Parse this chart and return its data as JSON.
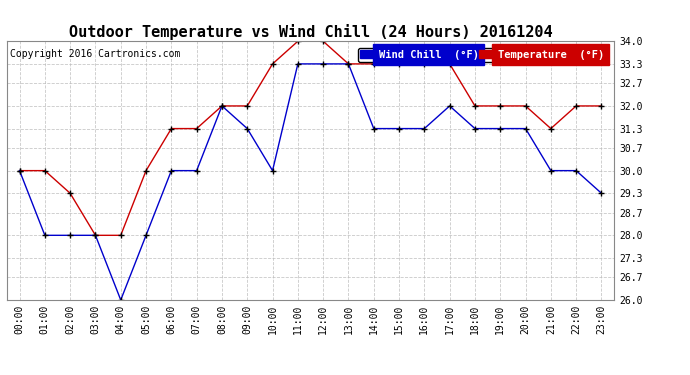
{
  "title": "Outdoor Temperature vs Wind Chill (24 Hours) 20161204",
  "copyright": "Copyright 2016 Cartronics.com",
  "x_labels": [
    "00:00",
    "01:00",
    "02:00",
    "03:00",
    "04:00",
    "05:00",
    "06:00",
    "07:00",
    "08:00",
    "09:00",
    "10:00",
    "11:00",
    "12:00",
    "13:00",
    "14:00",
    "15:00",
    "16:00",
    "17:00",
    "18:00",
    "19:00",
    "20:00",
    "21:00",
    "22:00",
    "23:00"
  ],
  "temperature": [
    30.0,
    30.0,
    29.3,
    28.0,
    28.0,
    30.0,
    31.3,
    31.3,
    32.0,
    32.0,
    33.3,
    34.0,
    34.0,
    33.3,
    33.3,
    33.3,
    33.3,
    33.3,
    32.0,
    32.0,
    32.0,
    31.3,
    32.0,
    32.0
  ],
  "wind_chill": [
    30.0,
    28.0,
    28.0,
    28.0,
    26.0,
    28.0,
    30.0,
    30.0,
    32.0,
    31.3,
    30.0,
    33.3,
    33.3,
    33.3,
    31.3,
    31.3,
    31.3,
    32.0,
    31.3,
    31.3,
    31.3,
    30.0,
    30.0,
    29.3
  ],
  "ylim": [
    26.0,
    34.0
  ],
  "yticks": [
    26.0,
    26.7,
    27.3,
    28.0,
    28.7,
    29.3,
    30.0,
    30.7,
    31.3,
    32.0,
    32.7,
    33.3,
    34.0
  ],
  "temp_color": "#cc0000",
  "wind_chill_color": "#0000cc",
  "bg_color": "#ffffff",
  "grid_color": "#bbbbbb",
  "legend_wind_bg": "#0000cc",
  "legend_temp_bg": "#cc0000",
  "title_fontsize": 11,
  "copyright_fontsize": 7,
  "axis_fontsize": 7,
  "legend_fontsize": 7.5
}
